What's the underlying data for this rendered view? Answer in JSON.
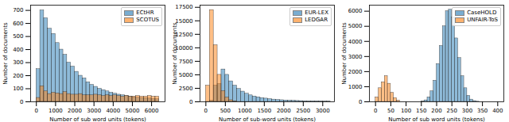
{
  "chart_data": [
    {
      "type": "histogram",
      "x_label": "Number of sub word units (tokens)",
      "y_label": "Number of documents",
      "bins": [
        0,
        200,
        400,
        600,
        800,
        1000,
        1200,
        1400,
        1600,
        1800,
        2000,
        2200,
        2400,
        2600,
        2800,
        3000,
        3200,
        3400,
        3600,
        3800,
        4000,
        4200,
        4400,
        4600,
        4800,
        5000,
        5200,
        5400,
        5600,
        5800,
        6000,
        6200,
        6400
      ],
      "series": [
        {
          "name": "ECtHR",
          "color": "#1f77b4",
          "values": [
            250,
            700,
            640,
            560,
            520,
            450,
            400,
            360,
            300,
            270,
            230,
            200,
            180,
            150,
            130,
            115,
            100,
            90,
            80,
            70,
            62,
            55,
            50,
            45,
            40,
            35,
            32,
            30,
            28,
            25,
            22,
            20
          ]
        },
        {
          "name": "SCOTUS",
          "color": "#ff7f0e",
          "values": [
            30,
            120,
            80,
            60,
            70,
            65,
            60,
            75,
            60,
            55,
            55,
            60,
            50,
            50,
            50,
            55,
            50,
            45,
            50,
            45,
            50,
            45,
            40,
            45,
            40,
            40,
            45,
            40,
            40,
            45,
            40,
            40
          ]
        }
      ],
      "xlim": [
        -300,
        6700
      ],
      "ylim": [
        0,
        740
      ],
      "xticks": [
        0,
        1000,
        2000,
        3000,
        4000,
        5000,
        6000
      ],
      "yticks": [
        0,
        100,
        200,
        300,
        400,
        500,
        600,
        700
      ],
      "grid": false,
      "legend": "upper right"
    },
    {
      "type": "histogram",
      "x_label": "Number of sub-word units (tokens)",
      "y_label": "Number of documents",
      "bins": [
        0,
        100,
        200,
        300,
        400,
        500,
        600,
        700,
        800,
        900,
        1000,
        1100,
        1200,
        1300,
        1400,
        1500,
        1600,
        1700,
        1800,
        1900,
        2000,
        2100,
        2200,
        2300,
        2400,
        2500,
        2600,
        2700,
        2800,
        2900,
        3000,
        3100,
        3200
      ],
      "series": [
        {
          "name": "EUR-LEX",
          "color": "#1f77b4",
          "values": [
            0,
            200,
            3000,
            3300,
            6000,
            5000,
            3800,
            3000,
            2400,
            1900,
            1500,
            1200,
            1000,
            850,
            700,
            600,
            500,
            420,
            360,
            300,
            260,
            220,
            190,
            160,
            140,
            120,
            100,
            90,
            80,
            70,
            60,
            50
          ]
        },
        {
          "name": "LEDGAR",
          "color": "#ff7f0e",
          "values": [
            3000,
            17000,
            10500,
            5000,
            2000,
            800,
            300,
            100,
            0,
            0,
            0,
            0,
            0,
            0,
            0,
            0,
            0,
            0,
            0,
            0,
            0,
            0,
            0,
            0,
            0,
            0,
            0,
            0,
            0,
            0,
            0,
            0
          ]
        }
      ],
      "xlim": [
        -150,
        3300
      ],
      "ylim": [
        0,
        17900
      ],
      "xticks": [
        0,
        500,
        1000,
        1500,
        2000,
        2500,
        3000
      ],
      "yticks": [
        0,
        2500,
        5000,
        7500,
        10000,
        12500,
        15000,
        17500
      ],
      "grid": false,
      "legend": "upper right"
    },
    {
      "type": "histogram",
      "x_label": "Number of sub word units (tokens)",
      "y_label": "Number of documents",
      "bins": [
        0,
        10,
        20,
        30,
        40,
        50,
        60,
        70,
        80,
        90,
        100,
        110,
        120,
        130,
        140,
        150,
        160,
        170,
        180,
        190,
        200,
        210,
        220,
        230,
        240,
        250,
        260,
        270,
        280,
        290,
        300,
        310,
        320,
        330,
        340,
        350,
        360,
        370,
        380,
        390,
        400
      ],
      "series": [
        {
          "name": "CaseHOLD",
          "color": "#1f77b4",
          "values": [
            0,
            0,
            0,
            0,
            0,
            0,
            0,
            0,
            0,
            0,
            0,
            0,
            0,
            0,
            0,
            20,
            100,
            300,
            700,
            1400,
            2500,
            3700,
            5000,
            6000,
            6100,
            5600,
            4200,
            2900,
            1700,
            900,
            400,
            150,
            50,
            10,
            0,
            0,
            0,
            0,
            0,
            0
          ]
        },
        {
          "name": "UNFAIR-ToS",
          "color": "#ff7f0e",
          "values": [
            300,
            900,
            1300,
            1700,
            1200,
            600,
            250,
            80,
            0,
            0,
            0,
            0,
            0,
            0,
            0,
            0,
            0,
            0,
            0,
            0,
            0,
            0,
            0,
            0,
            0,
            0,
            0,
            0,
            0,
            0,
            0,
            0,
            0,
            0,
            0,
            0,
            0,
            0,
            0,
            0
          ]
        }
      ],
      "xlim": [
        -20,
        420
      ],
      "ylim": [
        0,
        6400
      ],
      "xticks": [
        0,
        50,
        100,
        150,
        200,
        250,
        300,
        350,
        400
      ],
      "yticks": [
        0,
        1000,
        2000,
        3000,
        4000,
        5000,
        6000
      ],
      "grid": false,
      "legend": "upper right"
    }
  ]
}
